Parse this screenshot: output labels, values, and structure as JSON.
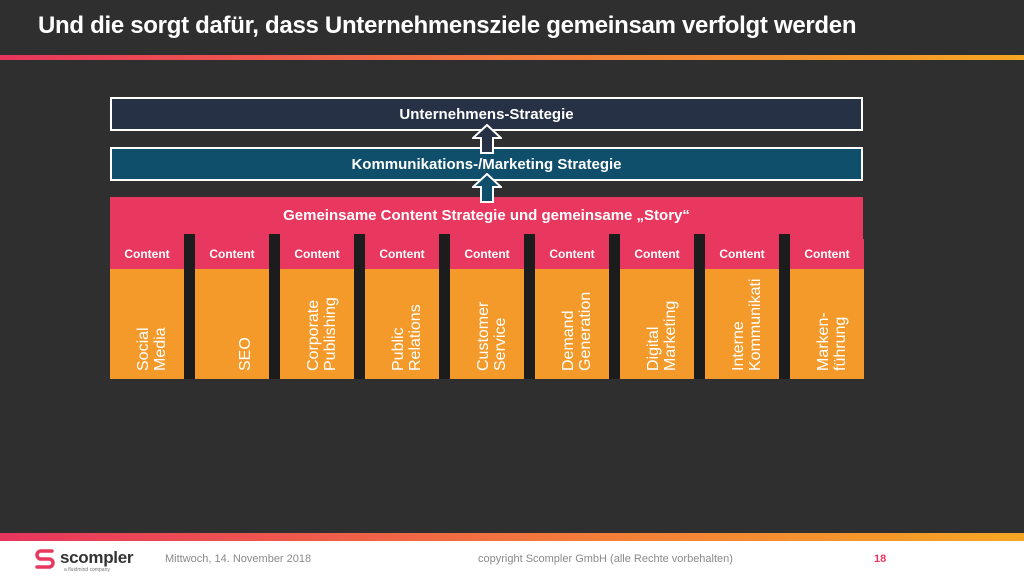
{
  "slide": {
    "title": "Und die sorgt dafür, dass Unternehmensziele gemeinsam verfolgt werden"
  },
  "diagram": {
    "strategy": "Unternehmens-Strategie",
    "marketing": "Kommunikations-/Marketing Strategie",
    "content_strategy": "Gemeinsame Content Strategie und gemeinsame „Story“",
    "columns": [
      {
        "label": "Content",
        "lines": [
          "Social",
          "Media"
        ]
      },
      {
        "label": "Content",
        "lines": [
          "SEO"
        ]
      },
      {
        "label": "Content",
        "lines": [
          "Corporate",
          "Publishing"
        ]
      },
      {
        "label": "Content",
        "lines": [
          "Public",
          "Relations"
        ]
      },
      {
        "label": "Content",
        "lines": [
          "Customer",
          "Service"
        ]
      },
      {
        "label": "Content",
        "lines": [
          "Demand",
          "Generation"
        ]
      },
      {
        "label": "Content",
        "lines": [
          "Digital",
          "Marketing"
        ]
      },
      {
        "label": "Content",
        "lines": [
          "Interne",
          "Kommunikati"
        ]
      },
      {
        "label": "Content",
        "lines": [
          "Marken-",
          "führung"
        ]
      }
    ]
  },
  "footer": {
    "logo_text": "scompler",
    "logo_sub": "a fluidmind company",
    "date": "Mittwoch, 14. November 2018",
    "copyright": "copyright Scompler GmbH (alle Rechte vorbehalten)",
    "page": "18"
  },
  "colors": {
    "background": "#2f2f2f",
    "accent_pink": "#e8385f",
    "accent_orange": "#f39a2a",
    "strategy_bar": "#263145",
    "marketing_bar": "#0f4f6b"
  }
}
